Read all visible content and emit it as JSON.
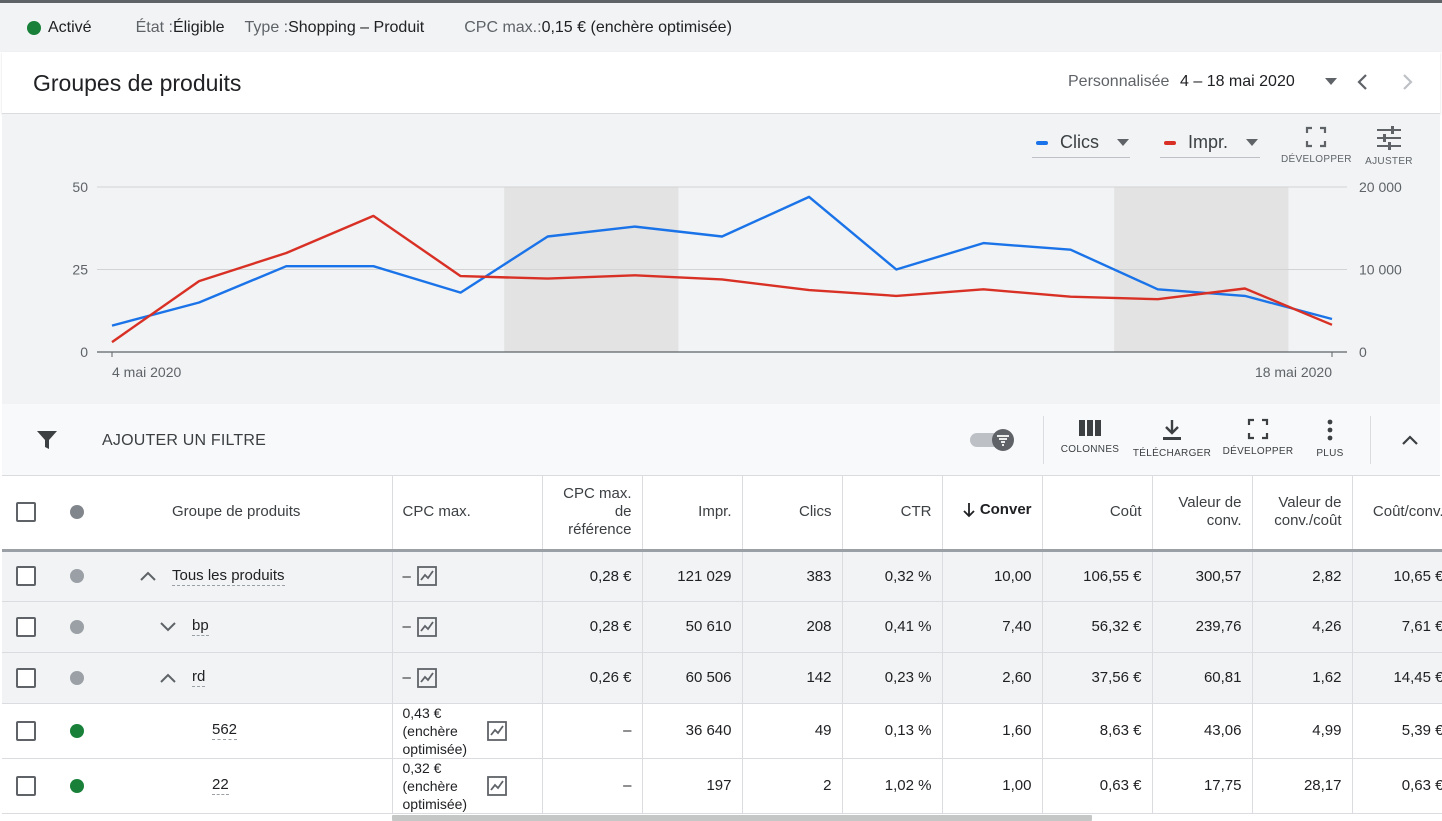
{
  "status_bar": {
    "status": "Activé",
    "state_key": "État : ",
    "state_value": "Éligible",
    "type_key": "Type : ",
    "type_value": "Shopping – Produit",
    "cpc_key": "CPC max.: ",
    "cpc_value": "0,15 € (enchère optimisée)"
  },
  "header": {
    "title": "Groupes de produits",
    "date_label": "Personnalisée",
    "date_range": "4 – 18 mai 2020"
  },
  "chart_controls": {
    "metric1": "Clics",
    "metric2": "Impr.",
    "expand_label": "DÉVELOPPER",
    "adjust_label": "AJUSTER"
  },
  "chart_data": {
    "type": "line",
    "x": [
      "4 mai 2020",
      "5 mai",
      "6 mai",
      "7 mai",
      "8 mai",
      "9 mai",
      "10 mai",
      "11 mai",
      "12 mai",
      "13 mai",
      "14 mai",
      "15 mai",
      "16 mai",
      "17 mai",
      "18 mai 2020"
    ],
    "x_tick_labels": [
      "4 mai 2020",
      "18 mai 2020"
    ],
    "series": [
      {
        "name": "Clics",
        "axis": "left",
        "color": "#1a73e8",
        "values": [
          8,
          15,
          26,
          26,
          18,
          35,
          38,
          35,
          47,
          25,
          33,
          31,
          19,
          17,
          10
        ]
      },
      {
        "name": "Impr.",
        "axis": "right",
        "color": "#d93025",
        "values": [
          1200,
          8600,
          12000,
          16500,
          9200,
          8900,
          9300,
          8800,
          7500,
          6800,
          7600,
          6700,
          6400,
          7700,
          3300
        ]
      }
    ],
    "left_axis": {
      "min": 0,
      "max": 50,
      "ticks": [
        "0",
        "25",
        "50"
      ]
    },
    "right_axis": {
      "min": 0,
      "max": 20000,
      "ticks": [
        "0",
        "10 000",
        "20 000"
      ]
    },
    "shaded_ranges": [
      [
        5,
        6
      ],
      [
        12,
        13
      ]
    ],
    "grid": true
  },
  "filter_bar": {
    "add_filter": "AJOUTER UN FILTRE",
    "columns": "COLONNES",
    "download": "TÉLÉCHARGER",
    "expand": "DÉVELOPPER",
    "more": "PLUS"
  },
  "table": {
    "headers": {
      "group": "Groupe de produits",
      "cpc": "CPC max.",
      "cpc_ref": "CPC max. de référence",
      "impr": "Impr.",
      "clicks": "Clics",
      "ctr": "CTR",
      "conv": "Conver",
      "cost": "Coût",
      "conv_value": "Valeur de conv.",
      "value_cost": "Valeur de conv./coût",
      "cost_conv": "Coût/conv."
    },
    "rows": [
      {
        "name": "Tous les produits",
        "cpc": "–",
        "cpc_ref": "0,28 €",
        "impr": "121 029",
        "clicks": "383",
        "ctr": "0,32 %",
        "conv": "10,00",
        "cost": "106,55 €",
        "conv_value": "300,57",
        "value_cost": "2,82",
        "cost_conv": "10,65 €"
      },
      {
        "name": "bp",
        "cpc": "–",
        "cpc_ref": "0,28 €",
        "impr": "50 610",
        "clicks": "208",
        "ctr": "0,41 %",
        "conv": "7,40",
        "cost": "56,32 €",
        "conv_value": "239,76",
        "value_cost": "4,26",
        "cost_conv": "7,61 €"
      },
      {
        "name": "rd",
        "cpc": "–",
        "cpc_ref": "0,26 €",
        "impr": "60 506",
        "clicks": "142",
        "ctr": "0,23 %",
        "conv": "2,60",
        "cost": "37,56 €",
        "conv_value": "60,81",
        "value_cost": "1,62",
        "cost_conv": "14,45 €"
      },
      {
        "name": "562",
        "cpc_l1": "0,43 €",
        "cpc_l2": "(enchère",
        "cpc_l3": "optimisée)",
        "cpc_ref": "–",
        "impr": "36 640",
        "clicks": "49",
        "ctr": "0,13 %",
        "conv": "1,60",
        "cost": "8,63 €",
        "conv_value": "43,06",
        "value_cost": "4,99",
        "cost_conv": "5,39 €"
      },
      {
        "name": "22",
        "cpc_l1": "0,32 €",
        "cpc_l2": "(enchère",
        "cpc_l3": "optimisée)",
        "cpc_ref": "–",
        "impr": "197",
        "clicks": "2",
        "ctr": "1,02 %",
        "conv": "1,00",
        "cost": "0,63 €",
        "conv_value": "17,75",
        "value_cost": "28,17",
        "cost_conv": "0,63 €"
      }
    ]
  }
}
